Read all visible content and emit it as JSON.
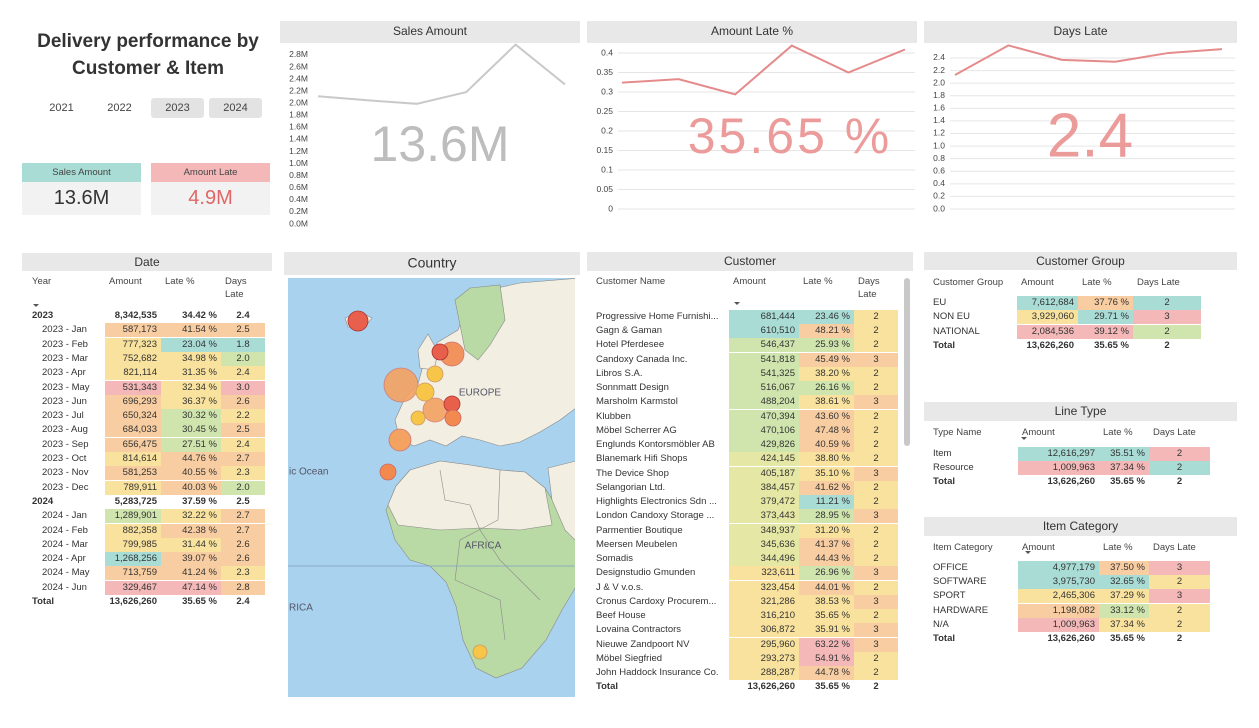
{
  "header": {
    "title": "Delivery performance by Customer & Item"
  },
  "year_slicer": {
    "options": [
      "2021",
      "2022",
      "2023",
      "2024"
    ],
    "selected": [
      false,
      false,
      true,
      true
    ]
  },
  "cards": [
    {
      "label": "Sales Amount",
      "value": "13.6M",
      "color": "#a8dcd5",
      "value_color": "#333333"
    },
    {
      "label": "Amount Late",
      "value": "4.9M",
      "color": "#f4b8b8",
      "value_color": "#e06666"
    }
  ],
  "chart_data": [
    {
      "type": "line",
      "title": "Sales Amount",
      "big_label": "13.6M",
      "big_color": "#bdbdbd",
      "categories": [
        null,
        null,
        null,
        null,
        null,
        null
      ],
      "values": [
        2116000,
        2049000,
        1991000,
        2186000,
        2972000,
        2312000
      ],
      "color": "#c9c9c9",
      "grid": false,
      "ylim": [
        0,
        3000000
      ],
      "yticks": [
        {
          "value": 0,
          "label": "0.0M"
        },
        {
          "value": 200000,
          "label": "0.2M"
        },
        {
          "value": 400000,
          "label": "0.4M"
        },
        {
          "value": 600000,
          "label": "0.6M"
        },
        {
          "value": 800000,
          "label": "0.8M"
        },
        {
          "value": 1000000,
          "label": "1.0M"
        },
        {
          "value": 1200000,
          "label": "1.2M"
        },
        {
          "value": 1400000,
          "label": "1.4M"
        },
        {
          "value": 1600000,
          "label": "1.6M"
        },
        {
          "value": 1800000,
          "label": "1.8M"
        },
        {
          "value": 2000000,
          "label": "2.0M"
        },
        {
          "value": 2200000,
          "label": "2.2M"
        },
        {
          "value": 2400000,
          "label": "2.4M"
        },
        {
          "value": 2600000,
          "label": "2.6M"
        },
        {
          "value": 2800000,
          "label": "2.8M"
        }
      ]
    },
    {
      "type": "line",
      "title": "Amount Late %",
      "big_label": "35.65 %",
      "big_color": "#ec9b9b",
      "categories": [
        null,
        null,
        null,
        null,
        null,
        null
      ],
      "values": [
        0.324,
        0.333,
        0.294,
        0.419,
        0.35,
        0.409
      ],
      "color": "#e58b8b",
      "grid": true,
      "ylim": [
        0,
        0.42
      ],
      "yticks": [
        0,
        0.05,
        0.1,
        0.15,
        0.2,
        0.25,
        0.3,
        0.35,
        0.4
      ]
    },
    {
      "type": "line",
      "title": "Days Late",
      "big_label": "2.4",
      "big_color": "#ec9b9b",
      "categories": [
        null,
        null,
        null,
        null,
        null,
        null
      ],
      "values": [
        2.13,
        2.6,
        2.37,
        2.34,
        2.48,
        2.54
      ],
      "color": "#e58b8b",
      "grid": true,
      "ylim": [
        0,
        2.6
      ],
      "yticks": [
        {
          "value": 0,
          "label": "0.0"
        },
        0.2,
        0.4,
        0.6,
        0.8,
        {
          "value": 1,
          "label": "1.0"
        },
        1.2,
        1.4,
        1.6,
        1.8,
        {
          "value": 2,
          "label": "2.0"
        },
        2.2,
        2.4
      ]
    }
  ],
  "map": {
    "title": "Country",
    "labels": [
      "EUROPE",
      "AFRICA",
      "ic Ocean",
      "RICA"
    ]
  },
  "tables": [
    {
      "title": "Date",
      "columns": [
        "Year",
        "Amount",
        "Late %",
        "Days Late"
      ],
      "rows": [
        {
          "cells": [
            "2023",
            "8,342,535",
            "34.42 %",
            "2.4"
          ]
        },
        {
          "cells": [
            "2023 - Jan",
            "587,173",
            "41.54 %",
            "2.5"
          ],
          "colors": [
            "#f8cda1",
            "#f8cda1",
            "#f8cda1"
          ]
        },
        {
          "cells": [
            "2023 - Feb",
            "777,323",
            "23.04 %",
            "1.8"
          ],
          "colors": [
            "#f8e29d",
            "#a8dcd5",
            "#a8dcd5"
          ]
        },
        {
          "cells": [
            "2023 - Mar",
            "752,682",
            "34.98 %",
            "2.0"
          ],
          "colors": [
            "#f8e29d",
            "#f8e29d",
            "#cfe5ad"
          ]
        },
        {
          "cells": [
            "2023 - Apr",
            "821,114",
            "31.35 %",
            "2.4"
          ],
          "colors": [
            "#f8e29d",
            "#f8e29d",
            "#f8e29d"
          ]
        },
        {
          "cells": [
            "2023 - May",
            "531,343",
            "32.34 %",
            "3.0"
          ],
          "colors": [
            "#f4b8b8",
            "#f8e29d",
            "#f4b8b8"
          ]
        },
        {
          "cells": [
            "2023 - Jun",
            "696,293",
            "36.37 %",
            "2.6"
          ],
          "colors": [
            "#f8cda1",
            "#f8e29d",
            "#f8cda1"
          ]
        },
        {
          "cells": [
            "2023 - Jul",
            "650,324",
            "30.32 %",
            "2.2"
          ],
          "colors": [
            "#f8cda1",
            "#cfe5ad",
            "#f8e29d"
          ]
        },
        {
          "cells": [
            "2023 - Aug",
            "684,033",
            "30.45 %",
            "2.5"
          ],
          "colors": [
            "#f8cda1",
            "#cfe5ad",
            "#f8cda1"
          ]
        },
        {
          "cells": [
            "2023 - Sep",
            "656,475",
            "27.51 %",
            "2.4"
          ],
          "colors": [
            "#f8cda1",
            "#cfe5ad",
            "#f8e29d"
          ]
        },
        {
          "cells": [
            "2023 - Oct",
            "814,614",
            "44.76 %",
            "2.7"
          ],
          "colors": [
            "#f8e29d",
            "#f8cda1",
            "#f8cda1"
          ]
        },
        {
          "cells": [
            "2023 - Nov",
            "581,253",
            "40.55 %",
            "2.3"
          ],
          "colors": [
            "#f8cda1",
            "#f8cda1",
            "#f8e29d"
          ]
        },
        {
          "cells": [
            "2023 - Dec",
            "789,911",
            "40.03 %",
            "2.0"
          ],
          "colors": [
            "#f8e29d",
            "#f8cda1",
            "#cfe5ad"
          ]
        },
        {
          "cells": [
            "2024",
            "5,283,725",
            "37.59 %",
            "2.5"
          ]
        },
        {
          "cells": [
            "2024 - Jan",
            "1,289,901",
            "32.22 %",
            "2.7"
          ],
          "colors": [
            "#cfe5ad",
            "#f8e29d",
            "#f8cda1"
          ]
        },
        {
          "cells": [
            "2024 - Feb",
            "882,358",
            "42.38 %",
            "2.7"
          ],
          "colors": [
            "#f8e29d",
            "#f8cda1",
            "#f8cda1"
          ]
        },
        {
          "cells": [
            "2024 - Mar",
            "799,985",
            "31.44 %",
            "2.6"
          ],
          "colors": [
            "#f8e29d",
            "#f8e29d",
            "#f8cda1"
          ]
        },
        {
          "cells": [
            "2024 - Apr",
            "1,268,256",
            "39.07 %",
            "2.6"
          ],
          "colors": [
            "#a8dcd5",
            "#f8cda1",
            "#f8cda1"
          ]
        },
        {
          "cells": [
            "2024 - May",
            "713,759",
            "41.24 %",
            "2.3"
          ],
          "colors": [
            "#f8cda1",
            "#f8cda1",
            "#f8e29d"
          ]
        },
        {
          "cells": [
            "2024 - Jun",
            "329,467",
            "47.14 %",
            "2.8"
          ],
          "colors": [
            "#f4b8b8",
            "#f4b8b8",
            "#f8cda1"
          ]
        },
        {
          "cells": [
            "Total",
            "13,626,260",
            "35.65 %",
            "2.4"
          ]
        }
      ]
    },
    {
      "title": "Customer",
      "columns": [
        "Customer Name",
        "Amount",
        "Late %",
        "Days Late"
      ],
      "rows": [
        {
          "cells": [
            "Progressive Home Furnishi...",
            "681,444",
            "23.46 %",
            "2"
          ],
          "colors": [
            "#a8dcd5",
            "#a8dcd5",
            "#f8e29d"
          ]
        },
        {
          "cells": [
            "Gagn & Gaman",
            "610,510",
            "48.21 %",
            "2"
          ],
          "colors": [
            "#a8dcd5",
            "#f8cda1",
            "#f8e29d"
          ]
        },
        {
          "cells": [
            "Hotel Pferdesee",
            "546,437",
            "25.93 %",
            "2"
          ],
          "colors": [
            "#cfe5ad",
            "#cfe5ad",
            "#f8e29d"
          ]
        },
        {
          "cells": [
            "Candoxy Canada Inc.",
            "541,818",
            "45.49 %",
            "3"
          ],
          "colors": [
            "#cfe5ad",
            "#f8cda1",
            "#f8cda1"
          ]
        },
        {
          "cells": [
            "Libros S.A.",
            "541,325",
            "38.20 %",
            "2"
          ],
          "colors": [
            "#cfe5ad",
            "#f8e29d",
            "#f8e29d"
          ]
        },
        {
          "cells": [
            "Sonnmatt Design",
            "516,067",
            "26.16 %",
            "2"
          ],
          "colors": [
            "#cfe5ad",
            "#cfe5ad",
            "#f8e29d"
          ]
        },
        {
          "cells": [
            "Marsholm Karmstol",
            "488,204",
            "38.61 %",
            "3"
          ],
          "colors": [
            "#cfe5ad",
            "#f8e29d",
            "#f8cda1"
          ]
        },
        {
          "cells": [
            "Klubben",
            "470,394",
            "43.60 %",
            "2"
          ],
          "colors": [
            "#cfe5ad",
            "#f8cda1",
            "#f8e29d"
          ]
        },
        {
          "cells": [
            "Möbel Scherrer AG",
            "470,106",
            "47.48 %",
            "2"
          ],
          "colors": [
            "#cfe5ad",
            "#f8cda1",
            "#f8e29d"
          ]
        },
        {
          "cells": [
            "Englunds Kontorsmöbler AB",
            "429,826",
            "40.59 %",
            "2"
          ],
          "colors": [
            "#cfe5ad",
            "#f8cda1",
            "#f8e29d"
          ]
        },
        {
          "cells": [
            "Blanemark Hifi Shops",
            "424,145",
            "38.80 %",
            "2"
          ],
          "colors": [
            "#e5e8a4",
            "#f8e29d",
            "#f8e29d"
          ]
        },
        {
          "cells": [
            "The Device Shop",
            "405,187",
            "35.10 %",
            "3"
          ],
          "colors": [
            "#e5e8a4",
            "#f8e29d",
            "#f8cda1"
          ]
        },
        {
          "cells": [
            "Selangorian Ltd.",
            "384,457",
            "41.62 %",
            "2"
          ],
          "colors": [
            "#e5e8a4",
            "#f8cda1",
            "#f8e29d"
          ]
        },
        {
          "cells": [
            "Highlights Electronics Sdn ...",
            "379,472",
            "11.21 %",
            "2"
          ],
          "colors": [
            "#e5e8a4",
            "#a8dcd5",
            "#f8e29d"
          ]
        },
        {
          "cells": [
            "London Candoxy Storage ...",
            "373,443",
            "28.95 %",
            "3"
          ],
          "colors": [
            "#e5e8a4",
            "#cfe5ad",
            "#f8cda1"
          ]
        },
        {
          "cells": [
            "Parmentier Boutique",
            "348,937",
            "31.20 %",
            "2"
          ],
          "colors": [
            "#e5e8a4",
            "#f8e29d",
            "#f8e29d"
          ]
        },
        {
          "cells": [
            "Meersen Meubelen",
            "345,636",
            "41.37 %",
            "2"
          ],
          "colors": [
            "#e5e8a4",
            "#f8cda1",
            "#f8e29d"
          ]
        },
        {
          "cells": [
            "Somadis",
            "344,496",
            "44.43 %",
            "2"
          ],
          "colors": [
            "#e5e8a4",
            "#f8cda1",
            "#f8e29d"
          ]
        },
        {
          "cells": [
            "Designstudio Gmunden",
            "323,611",
            "26.96 %",
            "3"
          ],
          "colors": [
            "#f8e29d",
            "#cfe5ad",
            "#f8cda1"
          ]
        },
        {
          "cells": [
            "J & V v.o.s.",
            "323,454",
            "44.01 %",
            "2"
          ],
          "colors": [
            "#f8e29d",
            "#f8cda1",
            "#f8e29d"
          ]
        },
        {
          "cells": [
            "Cronus Cardoxy Procurem...",
            "321,286",
            "38.53 %",
            "3"
          ],
          "colors": [
            "#f8e29d",
            "#f8e29d",
            "#f8cda1"
          ]
        },
        {
          "cells": [
            "Beef House",
            "316,210",
            "35.65 %",
            "2"
          ],
          "colors": [
            "#f8e29d",
            "#f8e29d",
            "#f8e29d"
          ]
        },
        {
          "cells": [
            "Lovaina Contractors",
            "306,872",
            "35.91 %",
            "3"
          ],
          "colors": [
            "#f8e29d",
            "#f8e29d",
            "#f8cda1"
          ]
        },
        {
          "cells": [
            "Nieuwe Zandpoort NV",
            "295,960",
            "63.22 %",
            "3"
          ],
          "colors": [
            "#f8e29d",
            "#f4b8b8",
            "#f8cda1"
          ]
        },
        {
          "cells": [
            "Möbel Siegfried",
            "293,273",
            "54.91 %",
            "2"
          ],
          "colors": [
            "#f8e29d",
            "#f4b8b8",
            "#f8e29d"
          ]
        },
        {
          "cells": [
            "John Haddock Insurance Co.",
            "288,287",
            "44.78 %",
            "2"
          ],
          "colors": [
            "#f8e29d",
            "#f8cda1",
            "#f8e29d"
          ]
        },
        {
          "cells": [
            "Total",
            "13,626,260",
            "35.65 %",
            "2"
          ]
        }
      ]
    },
    {
      "title": "Customer Group",
      "columns": [
        "Customer Group",
        "Amount",
        "Late %",
        "Days Late"
      ],
      "rows": [
        {
          "cells": [
            "EU",
            "7,612,684",
            "37.76 %",
            "2"
          ],
          "colors": [
            "#a8dcd5",
            "#f8cda1",
            "#a8dcd5"
          ]
        },
        {
          "cells": [
            "NON EU",
            "3,929,060",
            "29.71 %",
            "3"
          ],
          "colors": [
            "#f8e29d",
            "#a8dcd5",
            "#f4b8b8"
          ]
        },
        {
          "cells": [
            "NATIONAL",
            "2,084,536",
            "39.12 %",
            "2"
          ],
          "colors": [
            "#f4b8b8",
            "#f4b8b8",
            "#cfe5ad"
          ]
        },
        {
          "cells": [
            "Total",
            "13,626,260",
            "35.65 %",
            "2"
          ]
        }
      ]
    },
    {
      "title": "Line Type",
      "columns": [
        "Type Name",
        "Amount",
        "Late %",
        "Days Late"
      ],
      "rows": [
        {
          "cells": [
            "Item",
            "12,616,297",
            "35.51 %",
            "2"
          ],
          "colors": [
            "#a8dcd5",
            "#a8dcd5",
            "#f4b8b8"
          ]
        },
        {
          "cells": [
            "Resource",
            "1,009,963",
            "37.34 %",
            "2"
          ],
          "colors": [
            "#f4b8b8",
            "#f4b8b8",
            "#a8dcd5"
          ]
        },
        {
          "cells": [
            "Total",
            "13,626,260",
            "35.65 %",
            "2"
          ]
        }
      ]
    },
    {
      "title": "Item Category",
      "columns": [
        "Item Category",
        "Amount",
        "Late %",
        "Days Late"
      ],
      "rows": [
        {
          "cells": [
            "OFFICE",
            "4,977,179",
            "37.50 %",
            "3"
          ],
          "colors": [
            "#a8dcd5",
            "#f8cda1",
            "#f4b8b8"
          ]
        },
        {
          "cells": [
            "SOFTWARE",
            "3,975,730",
            "32.65 %",
            "2"
          ],
          "colors": [
            "#a8dcd5",
            "#a8dcd5",
            "#f8e29d"
          ]
        },
        {
          "cells": [
            "SPORT",
            "2,465,306",
            "37.29 %",
            "3"
          ],
          "colors": [
            "#f8e29d",
            "#f8e29d",
            "#f4b8b8"
          ]
        },
        {
          "cells": [
            "HARDWARE",
            "1,198,082",
            "33.12 %",
            "2"
          ],
          "colors": [
            "#f8cda1",
            "#cfe5ad",
            "#f8e29d"
          ]
        },
        {
          "cells": [
            "N/A",
            "1,009,963",
            "37.34 %",
            "2"
          ],
          "colors": [
            "#f4b8b8",
            "#f8e29d",
            "#f8e29d"
          ]
        },
        {
          "cells": [
            "Total",
            "13,626,260",
            "35.65 %",
            "2"
          ]
        }
      ]
    }
  ]
}
